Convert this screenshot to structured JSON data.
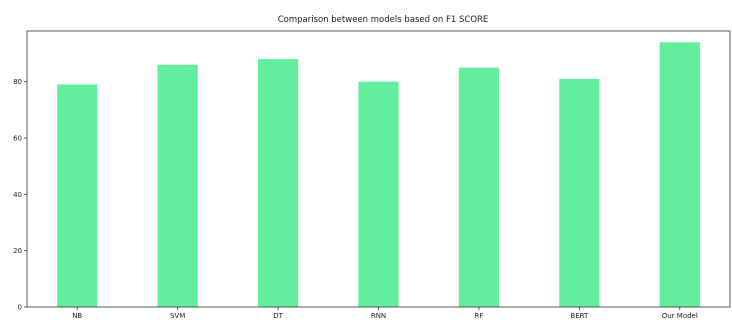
{
  "chart_data": {
    "type": "bar",
    "title": "Comparison between models based on F1 SCORE",
    "xlabel": "",
    "ylabel": "",
    "categories": [
      "NB",
      "SVM",
      "DT",
      "RNN",
      "RF",
      "BERT",
      "Our Model"
    ],
    "values": [
      79,
      86,
      88,
      80,
      85,
      81,
      94
    ],
    "ylim": [
      0,
      98
    ],
    "yticks": [
      0,
      20,
      40,
      60,
      80
    ],
    "grid": false,
    "bar_color": "#61ee9d"
  }
}
